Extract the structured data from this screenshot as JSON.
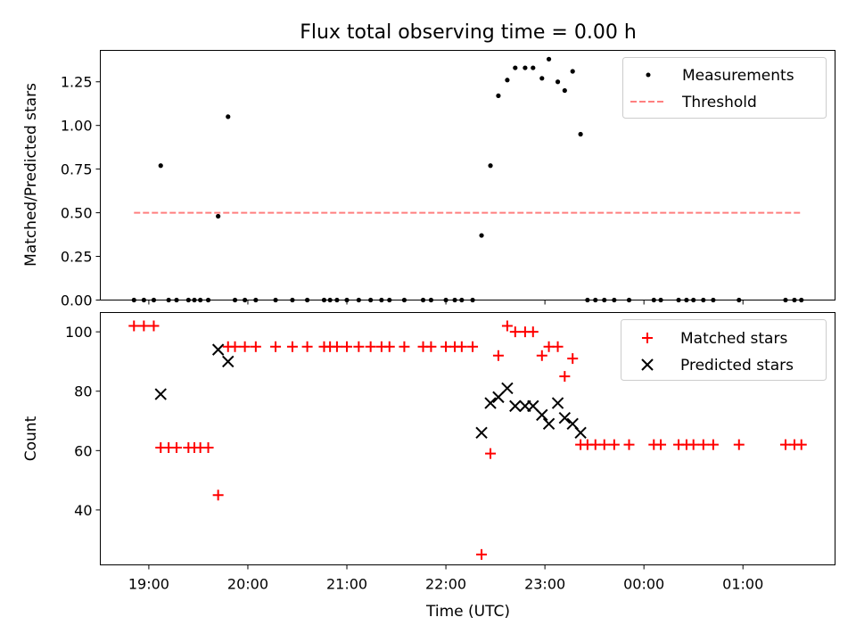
{
  "chart_data": [
    {
      "type": "scatter",
      "title": "Flux total observing time = 0.00 h",
      "xlabel": "",
      "ylabel": "Matched/Predicted stars",
      "ylim": [
        0,
        1.43
      ],
      "yticks": [
        0,
        0.25,
        0.5,
        0.75,
        1.0,
        1.25
      ],
      "ytick_labels": [
        "0.00",
        "0.25",
        "0.50",
        "0.75",
        "1.00",
        "1.25"
      ],
      "legend": {
        "position": "top-right",
        "labels": [
          "Measurements",
          "Threshold"
        ]
      },
      "series": [
        {
          "name": "Measurements",
          "style": "dot",
          "color": "#000000",
          "x": [
            18.85,
            18.95,
            19.05,
            19.12,
            19.2,
            19.28,
            19.4,
            19.46,
            19.52,
            19.6,
            19.7,
            19.8,
            19.87,
            19.97,
            20.08,
            20.28,
            20.45,
            20.6,
            20.77,
            20.83,
            20.9,
            21.0,
            21.12,
            21.24,
            21.35,
            21.43,
            21.58,
            21.77,
            21.85,
            22.0,
            22.09,
            22.16,
            22.27,
            22.36,
            22.45,
            22.53,
            22.62,
            22.7,
            22.8,
            22.88,
            22.97,
            23.04,
            23.13,
            23.2,
            23.28,
            23.36,
            23.43,
            23.51,
            23.6,
            23.7,
            23.85,
            24.1,
            24.17,
            24.35,
            24.43,
            24.5,
            24.6,
            24.7,
            24.96,
            25.43,
            25.52,
            25.59
          ],
          "y": [
            0,
            0,
            0,
            0.77,
            0,
            0,
            0,
            0,
            0,
            0,
            0.48,
            1.05,
            0,
            0,
            0,
            0,
            0,
            0,
            0,
            0,
            0,
            0,
            0,
            0,
            0,
            0,
            0,
            0,
            0,
            0,
            0,
            0,
            0,
            0.37,
            0.77,
            1.17,
            1.26,
            1.33,
            1.33,
            1.33,
            1.27,
            1.38,
            1.25,
            1.2,
            1.31,
            0.95,
            0,
            0,
            0,
            0,
            0,
            0,
            0,
            0,
            0,
            0,
            0,
            0,
            0,
            0,
            0,
            0
          ]
        },
        {
          "name": "Threshold",
          "style": "dashed-line",
          "color": "#ff7f7f",
          "x": [
            18.85,
            25.59
          ],
          "y": [
            0.5,
            0.5
          ]
        }
      ]
    },
    {
      "type": "scatter",
      "title": "",
      "xlabel": "Time (UTC)",
      "ylabel": "Count",
      "ylim": [
        21.5,
        106.5
      ],
      "yticks": [
        40,
        60,
        80,
        100
      ],
      "ytick_labels": [
        "40",
        "60",
        "80",
        "100"
      ],
      "legend": {
        "position": "top-right",
        "labels": [
          "Matched stars",
          "Predicted stars"
        ]
      },
      "series": [
        {
          "name": "Matched stars",
          "marker": "+",
          "color": "#ff0000",
          "x": [
            18.85,
            18.95,
            19.05,
            19.12,
            19.2,
            19.28,
            19.4,
            19.46,
            19.52,
            19.6,
            19.7,
            19.8,
            19.87,
            19.97,
            20.08,
            20.28,
            20.45,
            20.6,
            20.77,
            20.83,
            20.9,
            21.0,
            21.12,
            21.24,
            21.35,
            21.43,
            21.58,
            21.77,
            21.85,
            22.0,
            22.09,
            22.16,
            22.27,
            22.36,
            22.45,
            22.53,
            22.62,
            22.7,
            22.8,
            22.88,
            22.97,
            23.04,
            23.13,
            23.2,
            23.28,
            23.36,
            23.43,
            23.51,
            23.6,
            23.7,
            23.85,
            24.1,
            24.17,
            24.35,
            24.43,
            24.5,
            24.6,
            24.7,
            24.96,
            25.43,
            25.52,
            25.59
          ],
          "y": [
            102,
            102,
            102,
            61,
            61,
            61,
            61,
            61,
            61,
            61,
            45,
            95,
            95,
            95,
            95,
            95,
            95,
            95,
            95,
            95,
            95,
            95,
            95,
            95,
            95,
            95,
            95,
            95,
            95,
            95,
            95,
            95,
            95,
            25,
            59,
            92,
            102,
            100,
            100,
            100,
            92,
            95,
            95,
            85,
            91,
            62,
            62,
            62,
            62,
            62,
            62,
            62,
            62,
            62,
            62,
            62,
            62,
            62,
            62,
            62,
            62,
            62
          ]
        },
        {
          "name": "Predicted stars",
          "marker": "x",
          "color": "#000000",
          "x": [
            19.12,
            19.7,
            19.8,
            22.36,
            22.45,
            22.53,
            22.62,
            22.7,
            22.8,
            22.88,
            22.97,
            23.04,
            23.13,
            23.2,
            23.28,
            23.36
          ],
          "y": [
            79,
            94,
            90,
            66,
            76,
            78,
            81,
            75,
            75,
            75,
            72,
            69,
            76,
            71,
            69,
            66
          ]
        }
      ],
      "xticks": [
        19,
        20,
        21,
        22,
        23,
        24,
        25
      ],
      "xtick_labels": [
        "19:00",
        "20:00",
        "21:00",
        "22:00",
        "23:00",
        "00:00",
        "01:00"
      ],
      "xlim": [
        18.51,
        25.93
      ]
    }
  ]
}
